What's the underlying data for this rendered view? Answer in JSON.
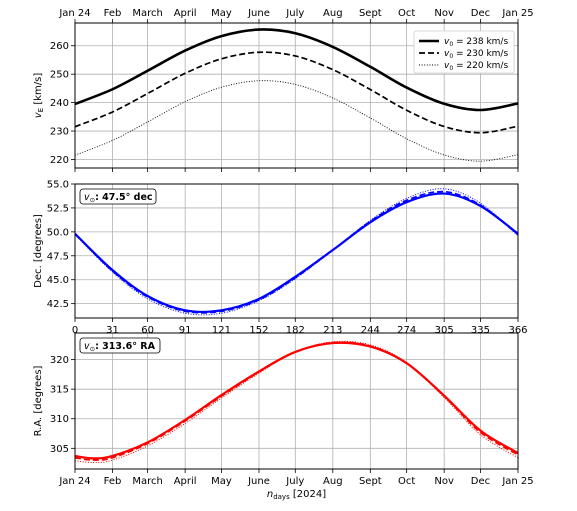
{
  "chart_data": [
    {
      "type": "line",
      "id": "velocity",
      "ylabel": "vE [km/s]",
      "ylim": [
        217,
        268
      ],
      "yticks": [
        220,
        230,
        240,
        250,
        260
      ],
      "grid": true,
      "legend_position": "top-right",
      "top_ticks": [
        "Jan 24",
        "Feb",
        "March",
        "April",
        "May",
        "June",
        "July",
        "Aug",
        "Sept",
        "Oct",
        "Nov",
        "Dec",
        "Jan 25"
      ],
      "x": [
        0,
        31,
        60,
        91,
        121,
        152,
        182,
        213,
        244,
        274,
        305,
        335,
        366
      ],
      "series": [
        {
          "name": "v0 = 238 km/s",
          "style": "solid",
          "values": [
            239.5,
            244.7,
            251.2,
            258.3,
            263.4,
            265.7,
            264.4,
            259.6,
            252.6,
            245.3,
            239.6,
            237.4,
            239.7
          ]
        },
        {
          "name": "v0 = 230 km/s",
          "style": "dashed",
          "values": [
            231.5,
            236.7,
            243.2,
            250.3,
            255.4,
            257.7,
            256.4,
            251.6,
            244.6,
            237.3,
            231.6,
            229.4,
            231.7
          ]
        },
        {
          "name": "v0 = 220 km/s",
          "style": "dotted",
          "values": [
            221.5,
            226.7,
            233.2,
            240.3,
            245.4,
            247.7,
            246.4,
            241.6,
            234.6,
            227.3,
            221.6,
            219.4,
            221.7
          ]
        }
      ]
    },
    {
      "type": "line",
      "id": "declination",
      "ylabel": "Dec. [degrees]",
      "ylim": [
        41,
        55
      ],
      "yticks": [
        42.5,
        45.0,
        47.5,
        50.0,
        52.5,
        55.0
      ],
      "grid": true,
      "box_label": "vE: 47.5° dec",
      "color": "#0000ff",
      "x": [
        0,
        31,
        60,
        91,
        121,
        152,
        182,
        213,
        244,
        274,
        305,
        335,
        366
      ],
      "series": [
        {
          "name": "",
          "style": "solid",
          "values": [
            49.8,
            46.0,
            43.3,
            41.8,
            41.8,
            43.0,
            45.3,
            48.1,
            51.0,
            53.1,
            54.0,
            52.7,
            49.8
          ]
        },
        {
          "name": "",
          "style": "dashed",
          "values": [
            49.8,
            45.9,
            43.2,
            41.7,
            41.7,
            42.9,
            45.2,
            48.1,
            51.1,
            53.3,
            54.2,
            52.8,
            49.7
          ]
        },
        {
          "name": "",
          "style": "dotted",
          "values": [
            49.7,
            45.8,
            43.0,
            41.5,
            41.5,
            42.8,
            45.1,
            48.1,
            51.2,
            53.5,
            54.5,
            53.0,
            49.6
          ]
        }
      ],
      "bottom_ticks": [
        "0",
        "31",
        "60",
        "91",
        "121",
        "152",
        "182",
        "213",
        "244",
        "274",
        "305",
        "335",
        "366"
      ]
    },
    {
      "type": "line",
      "id": "right-ascension",
      "ylabel": "R.A. [degrees]",
      "ylim": [
        301.5,
        324.5
      ],
      "yticks": [
        305,
        310,
        315,
        320
      ],
      "grid": true,
      "box_label": "vE: 313.6° RA",
      "color": "#ff0000",
      "x": [
        0,
        15,
        31,
        60,
        91,
        121,
        152,
        182,
        213,
        244,
        274,
        305,
        335,
        366
      ],
      "series": [
        {
          "name": "",
          "style": "solid",
          "values": [
            303.7,
            303.3,
            303.7,
            306.0,
            309.8,
            314.0,
            318.0,
            321.3,
            322.8,
            322.2,
            319.4,
            313.9,
            308.0,
            304.2
          ]
        },
        {
          "name": "",
          "style": "dashed",
          "values": [
            303.4,
            303.0,
            303.4,
            305.8,
            309.6,
            313.8,
            317.9,
            321.3,
            322.9,
            322.3,
            319.4,
            313.8,
            307.7,
            303.9
          ]
        },
        {
          "name": "",
          "style": "dotted",
          "values": [
            302.9,
            302.6,
            303.0,
            305.4,
            309.2,
            313.5,
            317.7,
            321.3,
            323.0,
            322.5,
            319.5,
            313.6,
            307.3,
            303.4
          ]
        }
      ],
      "bottom_ticks": [
        "Jan 24",
        "Feb",
        "March",
        "April",
        "May",
        "June",
        "July",
        "Aug",
        "Sept",
        "Oct",
        "Nov",
        "Dec",
        "Jan 25"
      ],
      "xlabel": "ndays [2024]"
    }
  ]
}
